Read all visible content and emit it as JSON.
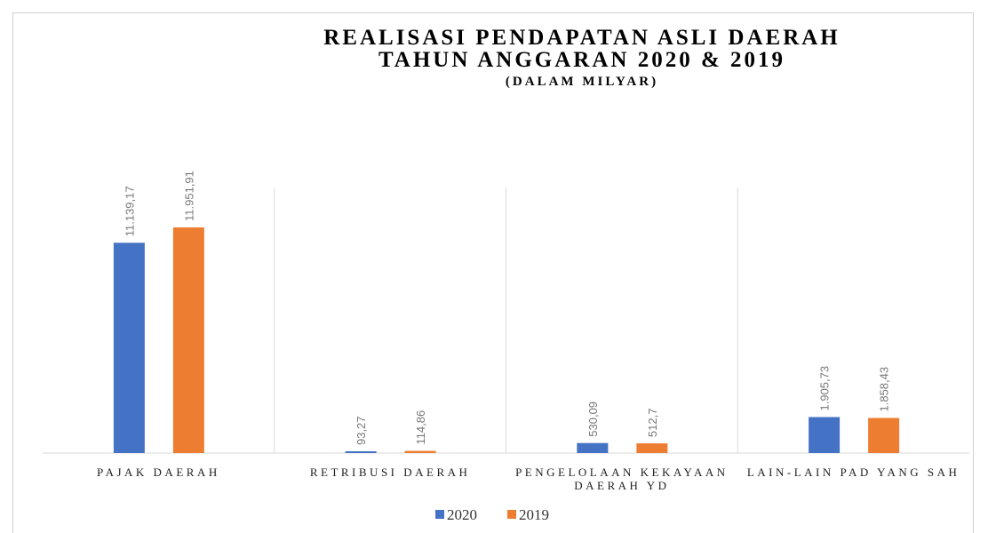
{
  "chart_data": {
    "type": "bar",
    "title": "REALISASI PENDAPATAN ASLI DAERAH\nTAHUN ANGGARAN 2020 & 2019",
    "subtitle": "(DALAM MILYAR)",
    "categories": [
      "PAJAK DAERAH",
      "RETRIBUSI DAERAH",
      "PENGELOLAAN KEKAYAAN DAERAH YD",
      "LAIN-LAIN PAD YANG SAH"
    ],
    "series": [
      {
        "name": "2020",
        "color": "#4472c4",
        "values": [
          11139.17,
          93.27,
          530.09,
          1905.73
        ],
        "value_labels": [
          "11.139,17",
          "93,27",
          "530,09",
          "1.905,73"
        ]
      },
      {
        "name": "2019",
        "color": "#ed7d31",
        "values": [
          11951.91,
          114.86,
          512.7,
          1858.43
        ],
        "value_labels": [
          "11.951,91",
          "114,86",
          "512,7",
          "1.858,43"
        ]
      }
    ],
    "legend": "bottom"
  }
}
